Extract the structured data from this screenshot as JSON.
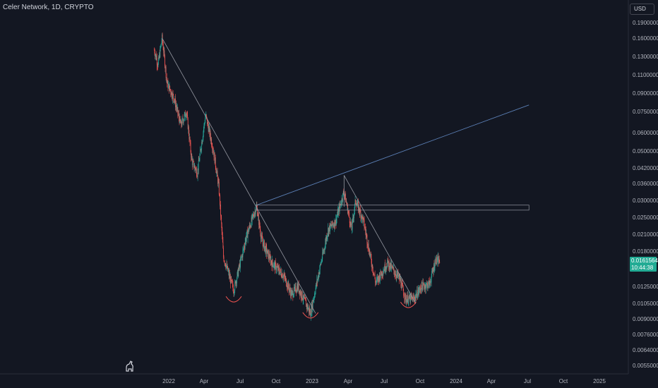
{
  "header": {
    "title": "Celer Network, 1D, CRYPTO"
  },
  "toolbar": {
    "currency": "USD"
  },
  "price_tag": {
    "price": "0.01615640",
    "countdown": "10:44:38"
  },
  "colors": {
    "background": "#131722",
    "up": "#26a69a",
    "down": "#ef5350",
    "trendline": "#9598a1",
    "channel": "#5b7fb5",
    "arc": "#ef5350",
    "price_tag": "#22ab94"
  },
  "chart_data": {
    "type": "candlestick",
    "symbol": "Celer Network",
    "interval": "1D",
    "exchange": "CRYPTO",
    "y_scale": "log",
    "y_ticks": [
      "0.19000000",
      "0.16000000",
      "0.13000000",
      "0.11000000",
      "0.09000000",
      "0.07500000",
      "0.06000000",
      "0.05000000",
      "0.04200000",
      "0.03600000",
      "0.03000000",
      "0.02500000",
      "0.02100000",
      "0.01800000",
      "0.01250000",
      "0.01050000",
      "0.00900000",
      "0.00760000",
      "0.00640000",
      "0.00550000"
    ],
    "x_ticks": [
      "2022",
      "Apr",
      "Jul",
      "Oct",
      "2023",
      "Apr",
      "Jul",
      "Oct",
      "2024",
      "Apr",
      "Jul",
      "Oct",
      "2025"
    ],
    "approx_price_path": [
      {
        "t": "2021-11-25",
        "p": 0.14
      },
      {
        "t": "2021-12-05",
        "p": 0.12
      },
      {
        "t": "2021-12-15",
        "p": 0.16
      },
      {
        "t": "2021-12-28",
        "p": 0.1
      },
      {
        "t": "2022-01-15",
        "p": 0.085
      },
      {
        "t": "2022-02-01",
        "p": 0.065
      },
      {
        "t": "2022-02-15",
        "p": 0.075
      },
      {
        "t": "2022-03-01",
        "p": 0.045
      },
      {
        "t": "2022-03-15",
        "p": 0.04
      },
      {
        "t": "2022-04-05",
        "p": 0.072
      },
      {
        "t": "2022-04-25",
        "p": 0.05
      },
      {
        "t": "2022-05-08",
        "p": 0.035
      },
      {
        "t": "2022-05-20",
        "p": 0.017
      },
      {
        "t": "2022-06-15",
        "p": 0.012
      },
      {
        "t": "2022-07-15",
        "p": 0.02
      },
      {
        "t": "2022-08-12",
        "p": 0.028
      },
      {
        "t": "2022-08-25",
        "p": 0.02
      },
      {
        "t": "2022-09-20",
        "p": 0.016
      },
      {
        "t": "2022-10-20",
        "p": 0.014
      },
      {
        "t": "2022-11-10",
        "p": 0.0115
      },
      {
        "t": "2022-11-25",
        "p": 0.0125
      },
      {
        "t": "2022-12-28",
        "p": 0.0095
      },
      {
        "t": "2023-01-20",
        "p": 0.015
      },
      {
        "t": "2023-02-10",
        "p": 0.022
      },
      {
        "t": "2023-03-01",
        "p": 0.024
      },
      {
        "t": "2023-03-22",
        "p": 0.033
      },
      {
        "t": "2023-04-10",
        "p": 0.022
      },
      {
        "t": "2023-04-20",
        "p": 0.03
      },
      {
        "t": "2023-05-10",
        "p": 0.024
      },
      {
        "t": "2023-06-10",
        "p": 0.013
      },
      {
        "t": "2023-07-10",
        "p": 0.016
      },
      {
        "t": "2023-08-10",
        "p": 0.0135
      },
      {
        "t": "2023-08-25",
        "p": 0.011
      },
      {
        "t": "2023-09-15",
        "p": 0.011
      },
      {
        "t": "2023-10-05",
        "p": 0.0125
      },
      {
        "t": "2023-10-25",
        "p": 0.0128
      },
      {
        "t": "2023-11-10",
        "p": 0.0165
      },
      {
        "t": "2023-11-20",
        "p": 0.0162
      }
    ],
    "drawings": [
      {
        "type": "trendline",
        "from": {
          "t": "2021-12-15",
          "p": 0.16
        },
        "to": {
          "t": "2023-01-10",
          "p": 0.0095
        }
      },
      {
        "type": "trendline",
        "from": {
          "t": "2023-03-22",
          "p": 0.039
        },
        "to": {
          "t": "2023-09-20",
          "p": 0.0105
        }
      },
      {
        "type": "vertical_line",
        "t": "2023-03-22",
        "from_p": 0.039,
        "to_p": 0.028
      },
      {
        "type": "ray",
        "from": {
          "t": "2022-08-12",
          "p": 0.0285
        },
        "to": {
          "t": "2024-07-05",
          "p": 0.08
        }
      },
      {
        "type": "rectangle",
        "from": {
          "t": "2022-08-12",
          "p": 0.0285
        },
        "to": {
          "t": "2024-07-05",
          "p": 0.027
        }
      },
      {
        "type": "arc",
        "at_t": "2022-06-15",
        "at_p": 0.0108
      },
      {
        "type": "arc",
        "at_t": "2022-12-28",
        "at_p": 0.0092
      },
      {
        "type": "arc",
        "at_t": "2023-09-01",
        "at_p": 0.0102
      }
    ]
  }
}
